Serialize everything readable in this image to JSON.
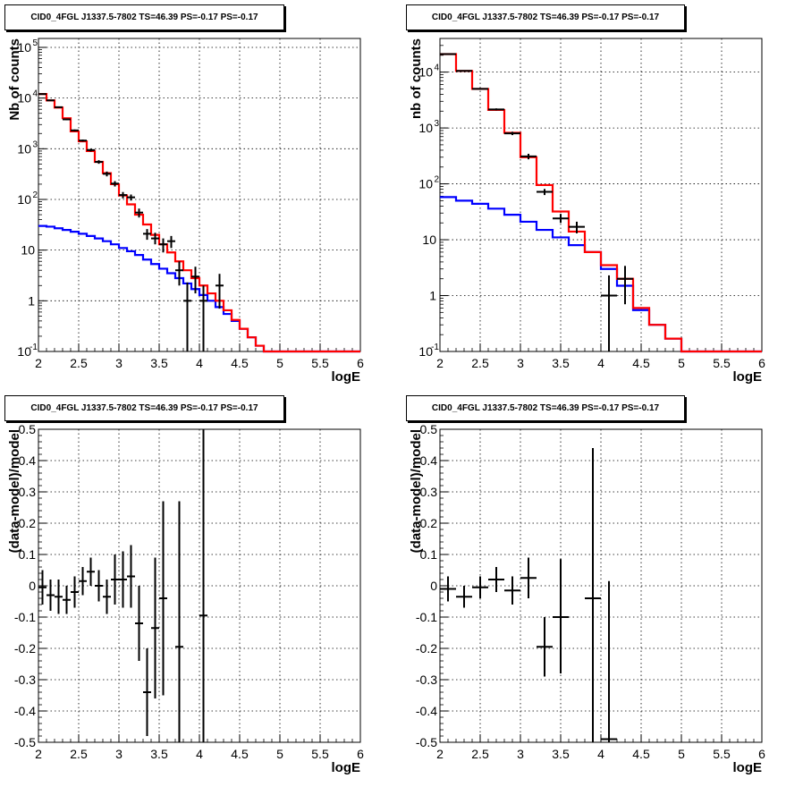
{
  "chart_data": [
    {
      "type": "line",
      "title": "CID0_4FGL J1337.5-7802 TS=46.39 PS=-0.17 PS=-0.17",
      "xlabel": "logE",
      "ylabel": "Nb of counts",
      "xlim": [
        2,
        6
      ],
      "ylim": [
        0.1,
        150000
      ],
      "yscale": "log",
      "grid": true,
      "xticks": [
        "2",
        "2.5",
        "3",
        "3.5",
        "4",
        "4.5",
        "5",
        "5.5",
        "6"
      ],
      "yticks": [
        {
          "value": 0.1,
          "label": "10",
          "exp": "-1"
        },
        {
          "value": 1,
          "label": "1",
          "exp": ""
        },
        {
          "value": 10,
          "label": "10",
          "exp": ""
        },
        {
          "value": 100,
          "label": "10",
          "exp": "2"
        },
        {
          "value": 1000,
          "label": "10",
          "exp": "3"
        },
        {
          "value": 10000,
          "label": "10",
          "exp": "4"
        },
        {
          "value": 100000,
          "label": "10",
          "exp": "5"
        }
      ],
      "series": [
        {
          "color": "#0000ff",
          "edges_x": [
            2,
            2.1,
            2.2,
            2.3,
            2.4,
            2.5,
            2.6,
            2.7,
            2.8,
            2.9,
            3.0,
            3.1,
            3.2,
            3.3,
            3.4,
            3.5,
            3.6,
            3.7,
            3.8,
            3.9,
            4.0,
            4.1,
            4.2,
            4.3,
            4.4,
            4.5,
            4.6,
            4.7,
            4.8,
            6.0
          ],
          "values": [
            30,
            29,
            27,
            25,
            23,
            21,
            19,
            17,
            15,
            13,
            11,
            9.5,
            8,
            6.5,
            5.3,
            4.3,
            3.5,
            2.8,
            2.2,
            1.7,
            1.3,
            1.0,
            0.75,
            0.55,
            0.4,
            0.28,
            0.19,
            0.13,
            0.1
          ]
        },
        {
          "color": "#ff0000",
          "edges_x": [
            2,
            2.1,
            2.2,
            2.3,
            2.4,
            2.5,
            2.6,
            2.7,
            2.8,
            2.9,
            3.0,
            3.1,
            3.2,
            3.3,
            3.4,
            3.5,
            3.6,
            3.7,
            3.8,
            3.9,
            4.0,
            4.1,
            4.2,
            4.3,
            4.4,
            4.5,
            4.6,
            4.7,
            4.8,
            6.0
          ],
          "values": [
            12000,
            9000,
            6500,
            4000,
            2200,
            1400,
            900,
            550,
            330,
            200,
            120,
            80,
            50,
            32,
            20,
            13,
            9,
            6,
            4,
            2.8,
            2.0,
            1.4,
            1.0,
            0.65,
            0.42,
            0.28,
            0.19,
            0.13,
            0.1
          ]
        }
      ],
      "points": [
        {
          "x": 2.05,
          "xerr": 0.05,
          "y": 12000,
          "ylo": 11800,
          "yhi": 12200
        },
        {
          "x": 2.15,
          "xerr": 0.05,
          "y": 9000,
          "ylo": 8800,
          "yhi": 9200
        },
        {
          "x": 2.25,
          "xerr": 0.05,
          "y": 6600,
          "ylo": 6400,
          "yhi": 6800
        },
        {
          "x": 2.35,
          "xerr": 0.05,
          "y": 3800,
          "ylo": 3650,
          "yhi": 3950
        },
        {
          "x": 2.45,
          "xerr": 0.05,
          "y": 2300,
          "ylo": 2200,
          "yhi": 2400
        },
        {
          "x": 2.55,
          "xerr": 0.05,
          "y": 1450,
          "ylo": 1380,
          "yhi": 1520
        },
        {
          "x": 2.65,
          "xerr": 0.05,
          "y": 940,
          "ylo": 880,
          "yhi": 1000
        },
        {
          "x": 2.75,
          "xerr": 0.05,
          "y": 550,
          "ylo": 505,
          "yhi": 595
        },
        {
          "x": 2.85,
          "xerr": 0.05,
          "y": 320,
          "ylo": 285,
          "yhi": 355
        },
        {
          "x": 2.95,
          "xerr": 0.05,
          "y": 205,
          "ylo": 180,
          "yhi": 230
        },
        {
          "x": 3.05,
          "xerr": 0.05,
          "y": 122,
          "ylo": 105,
          "yhi": 140
        },
        {
          "x": 3.15,
          "xerr": 0.05,
          "y": 110,
          "ylo": 95,
          "yhi": 125
        },
        {
          "x": 3.25,
          "xerr": 0.05,
          "y": 55,
          "ylo": 44,
          "yhi": 66
        },
        {
          "x": 3.35,
          "xerr": 0.05,
          "y": 21,
          "ylo": 16,
          "yhi": 26
        },
        {
          "x": 3.45,
          "xerr": 0.05,
          "y": 17,
          "ylo": 13,
          "yhi": 22
        },
        {
          "x": 3.55,
          "xerr": 0.05,
          "y": 13,
          "ylo": 9,
          "yhi": 17
        },
        {
          "x": 3.65,
          "xerr": 0.05,
          "y": 15,
          "ylo": 11,
          "yhi": 19
        },
        {
          "x": 3.75,
          "xerr": 0.05,
          "y": 4,
          "ylo": 2,
          "yhi": 6
        },
        {
          "x": 3.85,
          "xerr": 0.05,
          "y": 1,
          "ylo": 0.1,
          "yhi": 2.3
        },
        {
          "x": 3.95,
          "xerr": 0.05,
          "y": 3,
          "ylo": 1.4,
          "yhi": 4.7
        },
        {
          "x": 4.05,
          "xerr": 0.05,
          "y": 1,
          "ylo": 0.1,
          "yhi": 2
        },
        {
          "x": 4.25,
          "xerr": 0.05,
          "y": 2,
          "ylo": 0.7,
          "yhi": 3.4
        }
      ]
    },
    {
      "type": "line",
      "title": "CID0_4FGL J1337.5-7802 TS=46.39 PS=-0.17 PS=-0.17",
      "xlabel": "logE",
      "ylabel": "nb of counts",
      "xlim": [
        2,
        6
      ],
      "ylim": [
        0.1,
        40000
      ],
      "yscale": "log",
      "grid": true,
      "xticks": [
        "2",
        "2.5",
        "3",
        "3.5",
        "4",
        "4.5",
        "5",
        "5.5",
        "6"
      ],
      "yticks": [
        {
          "value": 0.1,
          "label": "10",
          "exp": "-1"
        },
        {
          "value": 1,
          "label": "1",
          "exp": ""
        },
        {
          "value": 10,
          "label": "10",
          "exp": ""
        },
        {
          "value": 100,
          "label": "10",
          "exp": "2"
        },
        {
          "value": 1000,
          "label": "10",
          "exp": "3"
        },
        {
          "value": 10000,
          "label": "10",
          "exp": "4"
        }
      ],
      "series": [
        {
          "color": "#0000ff",
          "edges_x": [
            2,
            2.2,
            2.4,
            2.6,
            2.8,
            3.0,
            3.2,
            3.4,
            3.6,
            3.8,
            4.0,
            4.2,
            4.4,
            4.6,
            4.8,
            5.0,
            6.0
          ],
          "values": [
            58,
            50,
            44,
            36,
            28,
            21,
            15,
            11,
            8,
            6,
            3,
            1.5,
            0.55,
            0.3,
            0.17,
            0.1
          ]
        },
        {
          "color": "#ff0000",
          "edges_x": [
            2,
            2.2,
            2.4,
            2.6,
            2.8,
            3.0,
            3.2,
            3.4,
            3.6,
            3.8,
            4.0,
            4.2,
            4.4,
            4.6,
            4.8,
            5.0,
            6.0
          ],
          "values": [
            21000,
            10500,
            5000,
            2100,
            820,
            300,
            95,
            32,
            14,
            6,
            3.5,
            2,
            0.6,
            0.3,
            0.17,
            0.1
          ]
        }
      ],
      "points": [
        {
          "x": 2.1,
          "xerr": 0.1,
          "y": 21000,
          "ylo": 20700,
          "yhi": 21300
        },
        {
          "x": 2.3,
          "xerr": 0.1,
          "y": 10500,
          "ylo": 10300,
          "yhi": 10700
        },
        {
          "x": 2.5,
          "xerr": 0.1,
          "y": 5000,
          "ylo": 4860,
          "yhi": 5140
        },
        {
          "x": 2.7,
          "xerr": 0.1,
          "y": 2150,
          "ylo": 2060,
          "yhi": 2240
        },
        {
          "x": 2.9,
          "xerr": 0.1,
          "y": 800,
          "ylo": 745,
          "yhi": 855
        },
        {
          "x": 3.1,
          "xerr": 0.1,
          "y": 310,
          "ylo": 275,
          "yhi": 345
        },
        {
          "x": 3.3,
          "xerr": 0.1,
          "y": 72,
          "ylo": 63,
          "yhi": 81
        },
        {
          "x": 3.5,
          "xerr": 0.1,
          "y": 24,
          "ylo": 20,
          "yhi": 29
        },
        {
          "x": 3.7,
          "xerr": 0.1,
          "y": 17,
          "ylo": 13,
          "yhi": 21
        },
        {
          "x": 4.1,
          "xerr": 0.1,
          "y": 1,
          "ylo": 0.1,
          "yhi": 2.3
        },
        {
          "x": 4.3,
          "xerr": 0.1,
          "y": 2,
          "ylo": 0.7,
          "yhi": 3.4
        }
      ]
    },
    {
      "type": "scatter",
      "title": "CID0_4FGL J1337.5-7802 TS=46.39 PS=-0.17 PS=-0.17",
      "xlabel": "logE",
      "ylabel": "(data-model)/model",
      "xlim": [
        2,
        6
      ],
      "ylim": [
        -0.5,
        0.5
      ],
      "grid": true,
      "xticks": [
        "2",
        "2.5",
        "3",
        "3.5",
        "4",
        "4.5",
        "5",
        "5.5",
        "6"
      ],
      "yticks": [
        "-0.5",
        "-0.4",
        "-0.3",
        "-0.2",
        "-0.1",
        "0",
        "0.1",
        "0.2",
        "0.3",
        "0.4",
        "0.5"
      ],
      "points": [
        {
          "x": 2.05,
          "xerr": 0.05,
          "y": -0.005,
          "ylo": -0.06,
          "yhi": 0.05
        },
        {
          "x": 2.15,
          "xerr": 0.05,
          "y": -0.03,
          "ylo": -0.08,
          "yhi": 0.02
        },
        {
          "x": 2.25,
          "xerr": 0.05,
          "y": -0.035,
          "ylo": -0.09,
          "yhi": 0.02
        },
        {
          "x": 2.35,
          "xerr": 0.05,
          "y": -0.045,
          "ylo": -0.09,
          "yhi": 0.0
        },
        {
          "x": 2.45,
          "xerr": 0.05,
          "y": -0.02,
          "ylo": -0.07,
          "yhi": 0.03
        },
        {
          "x": 2.55,
          "xerr": 0.05,
          "y": 0.015,
          "ylo": -0.03,
          "yhi": 0.06
        },
        {
          "x": 2.65,
          "xerr": 0.05,
          "y": 0.045,
          "ylo": 0.0,
          "yhi": 0.09
        },
        {
          "x": 2.75,
          "xerr": 0.05,
          "y": 0.0,
          "ylo": -0.05,
          "yhi": 0.05
        },
        {
          "x": 2.85,
          "xerr": 0.05,
          "y": -0.035,
          "ylo": -0.09,
          "yhi": 0.02
        },
        {
          "x": 2.95,
          "xerr": 0.05,
          "y": 0.02,
          "ylo": -0.06,
          "yhi": 0.1
        },
        {
          "x": 3.05,
          "xerr": 0.05,
          "y": 0.02,
          "ylo": -0.07,
          "yhi": 0.11
        },
        {
          "x": 3.15,
          "xerr": 0.05,
          "y": 0.03,
          "ylo": -0.07,
          "yhi": 0.13
        },
        {
          "x": 3.25,
          "xerr": 0.05,
          "y": -0.12,
          "ylo": -0.24,
          "yhi": 0.0
        },
        {
          "x": 3.35,
          "xerr": 0.05,
          "y": -0.34,
          "ylo": -0.48,
          "yhi": -0.2
        },
        {
          "x": 3.45,
          "xerr": 0.05,
          "y": -0.135,
          "ylo": -0.36,
          "yhi": 0.09
        },
        {
          "x": 3.55,
          "xerr": 0.05,
          "y": -0.04,
          "ylo": -0.35,
          "yhi": 0.27
        },
        {
          "x": 3.75,
          "xerr": 0.05,
          "y": -0.195,
          "ylo": -0.5,
          "yhi": 0.27
        },
        {
          "x": 4.05,
          "xerr": 0.05,
          "y": -0.095,
          "ylo": -0.5,
          "yhi": 0.5
        }
      ]
    },
    {
      "type": "scatter",
      "title": "CID0_4FGL J1337.5-7802 TS=46.39 PS=-0.17 PS=-0.17",
      "xlabel": "logE",
      "ylabel": "(data-model)/model",
      "xlim": [
        2,
        6
      ],
      "ylim": [
        -0.5,
        0.5
      ],
      "grid": true,
      "xticks": [
        "2",
        "2.5",
        "3",
        "3.5",
        "4",
        "4.5",
        "5",
        "5.5",
        "6"
      ],
      "yticks": [
        "-0.5",
        "-0.4",
        "-0.3",
        "-0.2",
        "-0.1",
        "0",
        "0.1",
        "0.2",
        "0.3",
        "0.4",
        "0.5"
      ],
      "points": [
        {
          "x": 2.1,
          "xerr": 0.1,
          "y": -0.01,
          "ylo": -0.05,
          "yhi": 0.03
        },
        {
          "x": 2.3,
          "xerr": 0.1,
          "y": -0.035,
          "ylo": -0.07,
          "yhi": 0.0
        },
        {
          "x": 2.5,
          "xerr": 0.1,
          "y": -0.005,
          "ylo": -0.04,
          "yhi": 0.03
        },
        {
          "x": 2.7,
          "xerr": 0.1,
          "y": 0.02,
          "ylo": -0.02,
          "yhi": 0.06
        },
        {
          "x": 2.9,
          "xerr": 0.1,
          "y": -0.015,
          "ylo": -0.06,
          "yhi": 0.03
        },
        {
          "x": 3.1,
          "xerr": 0.1,
          "y": 0.025,
          "ylo": -0.04,
          "yhi": 0.09
        },
        {
          "x": 3.3,
          "xerr": 0.1,
          "y": -0.195,
          "ylo": -0.29,
          "yhi": -0.1
        },
        {
          "x": 3.5,
          "xerr": 0.1,
          "y": -0.1,
          "ylo": -0.28,
          "yhi": 0.085
        },
        {
          "x": 3.9,
          "xerr": 0.1,
          "y": -0.04,
          "ylo": -0.5,
          "yhi": 0.44
        },
        {
          "x": 4.1,
          "xerr": 0.1,
          "y": -0.49,
          "ylo": -0.5,
          "yhi": 0.015
        }
      ]
    }
  ]
}
